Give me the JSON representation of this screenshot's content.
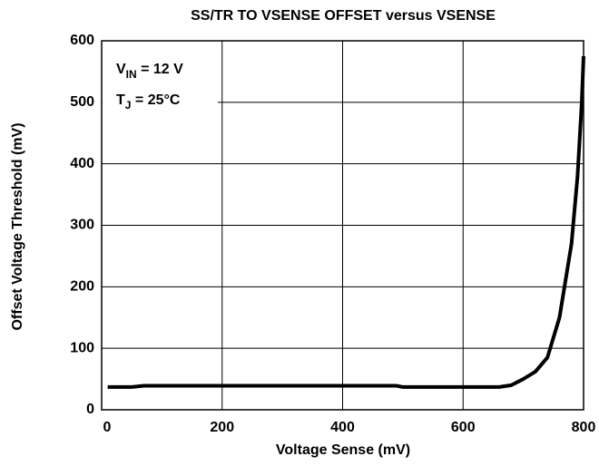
{
  "chart_data": {
    "type": "line",
    "title": "SS/TR TO VSENSE OFFSET versus VSENSE",
    "x_label": "Voltage Sense (mV)",
    "y_label": "Offset Voltage Threshold (mV)",
    "annotations": [
      {
        "text": "V",
        "sub": "IN",
        "rest": " = 12 V"
      },
      {
        "text": "T",
        "sub": "J",
        "rest": " = 25°C"
      }
    ],
    "x": [
      10,
      40,
      50,
      70,
      200,
      400,
      490,
      500,
      600,
      660,
      680,
      700,
      720,
      740,
      760,
      770,
      780,
      790,
      797,
      800
    ],
    "series": [
      {
        "name": "Offset",
        "color": "#000000",
        "values": [
          37,
          37,
          37,
          39,
          39,
          39,
          39,
          37,
          37,
          37,
          40,
          50,
          62,
          85,
          150,
          210,
          270,
          380,
          500,
          575
        ]
      }
    ],
    "xlim": [
      0,
      800
    ],
    "xticks": [
      0,
      200,
      400,
      600,
      800
    ],
    "ylim": [
      0,
      600
    ],
    "yticks": [
      0,
      100,
      200,
      300,
      400,
      500,
      600
    ],
    "grid": true
  }
}
